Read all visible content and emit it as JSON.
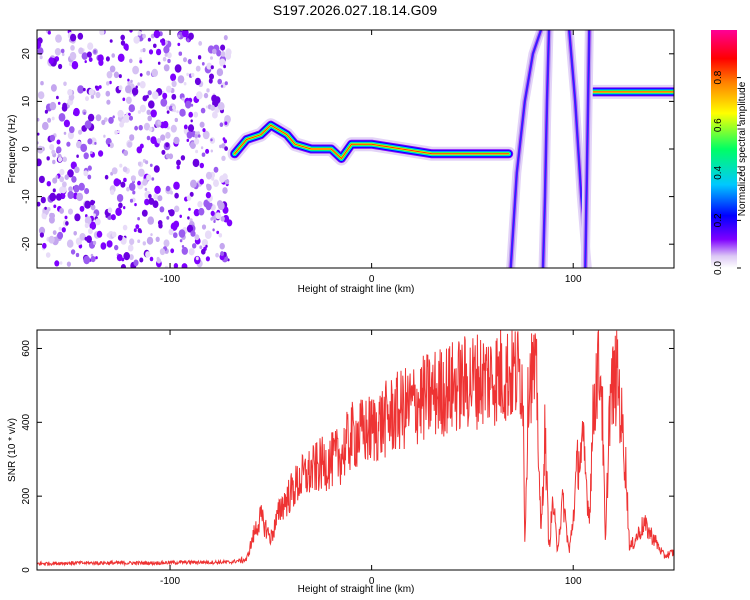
{
  "chart_data": [
    {
      "type": "heatmap",
      "title": "S197.2026.027.18.14.G09",
      "xlabel": "Height of straight line (km)",
      "ylabel": "Frequency (Hz)",
      "xlim": [
        -166,
        150
      ],
      "ylim": [
        -25,
        25
      ],
      "xticks": [
        -100,
        0,
        100
      ],
      "yticks": [
        -20,
        -10,
        0,
        10,
        20
      ],
      "colorbar": {
        "label": "Normalized spectral amplitude",
        "range": [
          0,
          1
        ],
        "ticks": [
          "0.0",
          "0.2",
          "0.4",
          "0.6",
          "0.8"
        ],
        "colors": [
          "#ffffff",
          "#dcc8f5",
          "#7f00ff",
          "#0000ff",
          "#00c8ff",
          "#00ff64",
          "#ffff00",
          "#ff8000",
          "#ff0000",
          "#ff0096"
        ]
      },
      "noise_region_x": [
        -166,
        -70
      ],
      "ridge_segments": [
        {
          "name": "ridge-main",
          "x": [
            -68,
            -62,
            -55,
            -50,
            -42,
            -38,
            -30,
            -20,
            -15,
            -10,
            0,
            15,
            30,
            50,
            68
          ],
          "y": [
            -1,
            2,
            3,
            5,
            3,
            1,
            0,
            0,
            -2,
            1,
            1,
            0,
            -1,
            -1,
            -1
          ]
        },
        {
          "name": "ridge-late",
          "x": [
            110,
            120,
            130,
            150
          ],
          "y": [
            12,
            12,
            12,
            12
          ]
        },
        {
          "name": "streak-a",
          "x": [
            69,
            72,
            76,
            80,
            84
          ],
          "y": [
            -25,
            -5,
            10,
            20,
            25
          ]
        },
        {
          "name": "streak-b",
          "x": [
            85,
            86,
            87,
            88
          ],
          "y": [
            -25,
            -10,
            10,
            25
          ]
        },
        {
          "name": "streak-c",
          "x": [
            98,
            101,
            104,
            107
          ],
          "y": [
            25,
            10,
            -10,
            -25
          ]
        },
        {
          "name": "streak-d",
          "x": [
            106,
            107,
            108
          ],
          "y": [
            -25,
            0,
            25
          ]
        }
      ]
    },
    {
      "type": "line",
      "xlabel": "Height of straight line (km)",
      "ylabel": "SNR (10 * v/v)",
      "xlim": [
        -166,
        150
      ],
      "ylim": [
        0,
        650
      ],
      "xticks": [
        -100,
        0,
        100
      ],
      "yticks": [
        0,
        200,
        400,
        600
      ],
      "line_color": "#ee3333",
      "series": [
        {
          "name": "SNR",
          "x": [
            -166,
            -150,
            -130,
            -110,
            -90,
            -70,
            -62,
            -58,
            -55,
            -50,
            -45,
            -40,
            -35,
            -30,
            -25,
            -20,
            -15,
            -10,
            -5,
            0,
            10,
            20,
            30,
            40,
            50,
            60,
            70,
            75,
            76,
            78,
            80,
            82,
            84,
            86,
            88,
            90,
            92,
            95,
            98,
            100,
            102,
            105,
            108,
            110,
            112,
            114,
            116,
            118,
            120,
            122,
            124,
            126,
            128,
            130,
            135,
            140,
            145,
            150
          ],
          "y": [
            18,
            20,
            20,
            20,
            22,
            22,
            30,
            110,
            150,
            90,
            180,
            220,
            260,
            280,
            300,
            310,
            330,
            380,
            390,
            400,
            440,
            470,
            500,
            520,
            540,
            550,
            560,
            560,
            80,
            570,
            560,
            520,
            90,
            400,
            60,
            200,
            60,
            200,
            50,
            150,
            300,
            350,
            150,
            450,
            580,
            560,
            60,
            470,
            530,
            560,
            420,
            300,
            60,
            80,
            130,
            90,
            40,
            50
          ]
        }
      ]
    }
  ]
}
